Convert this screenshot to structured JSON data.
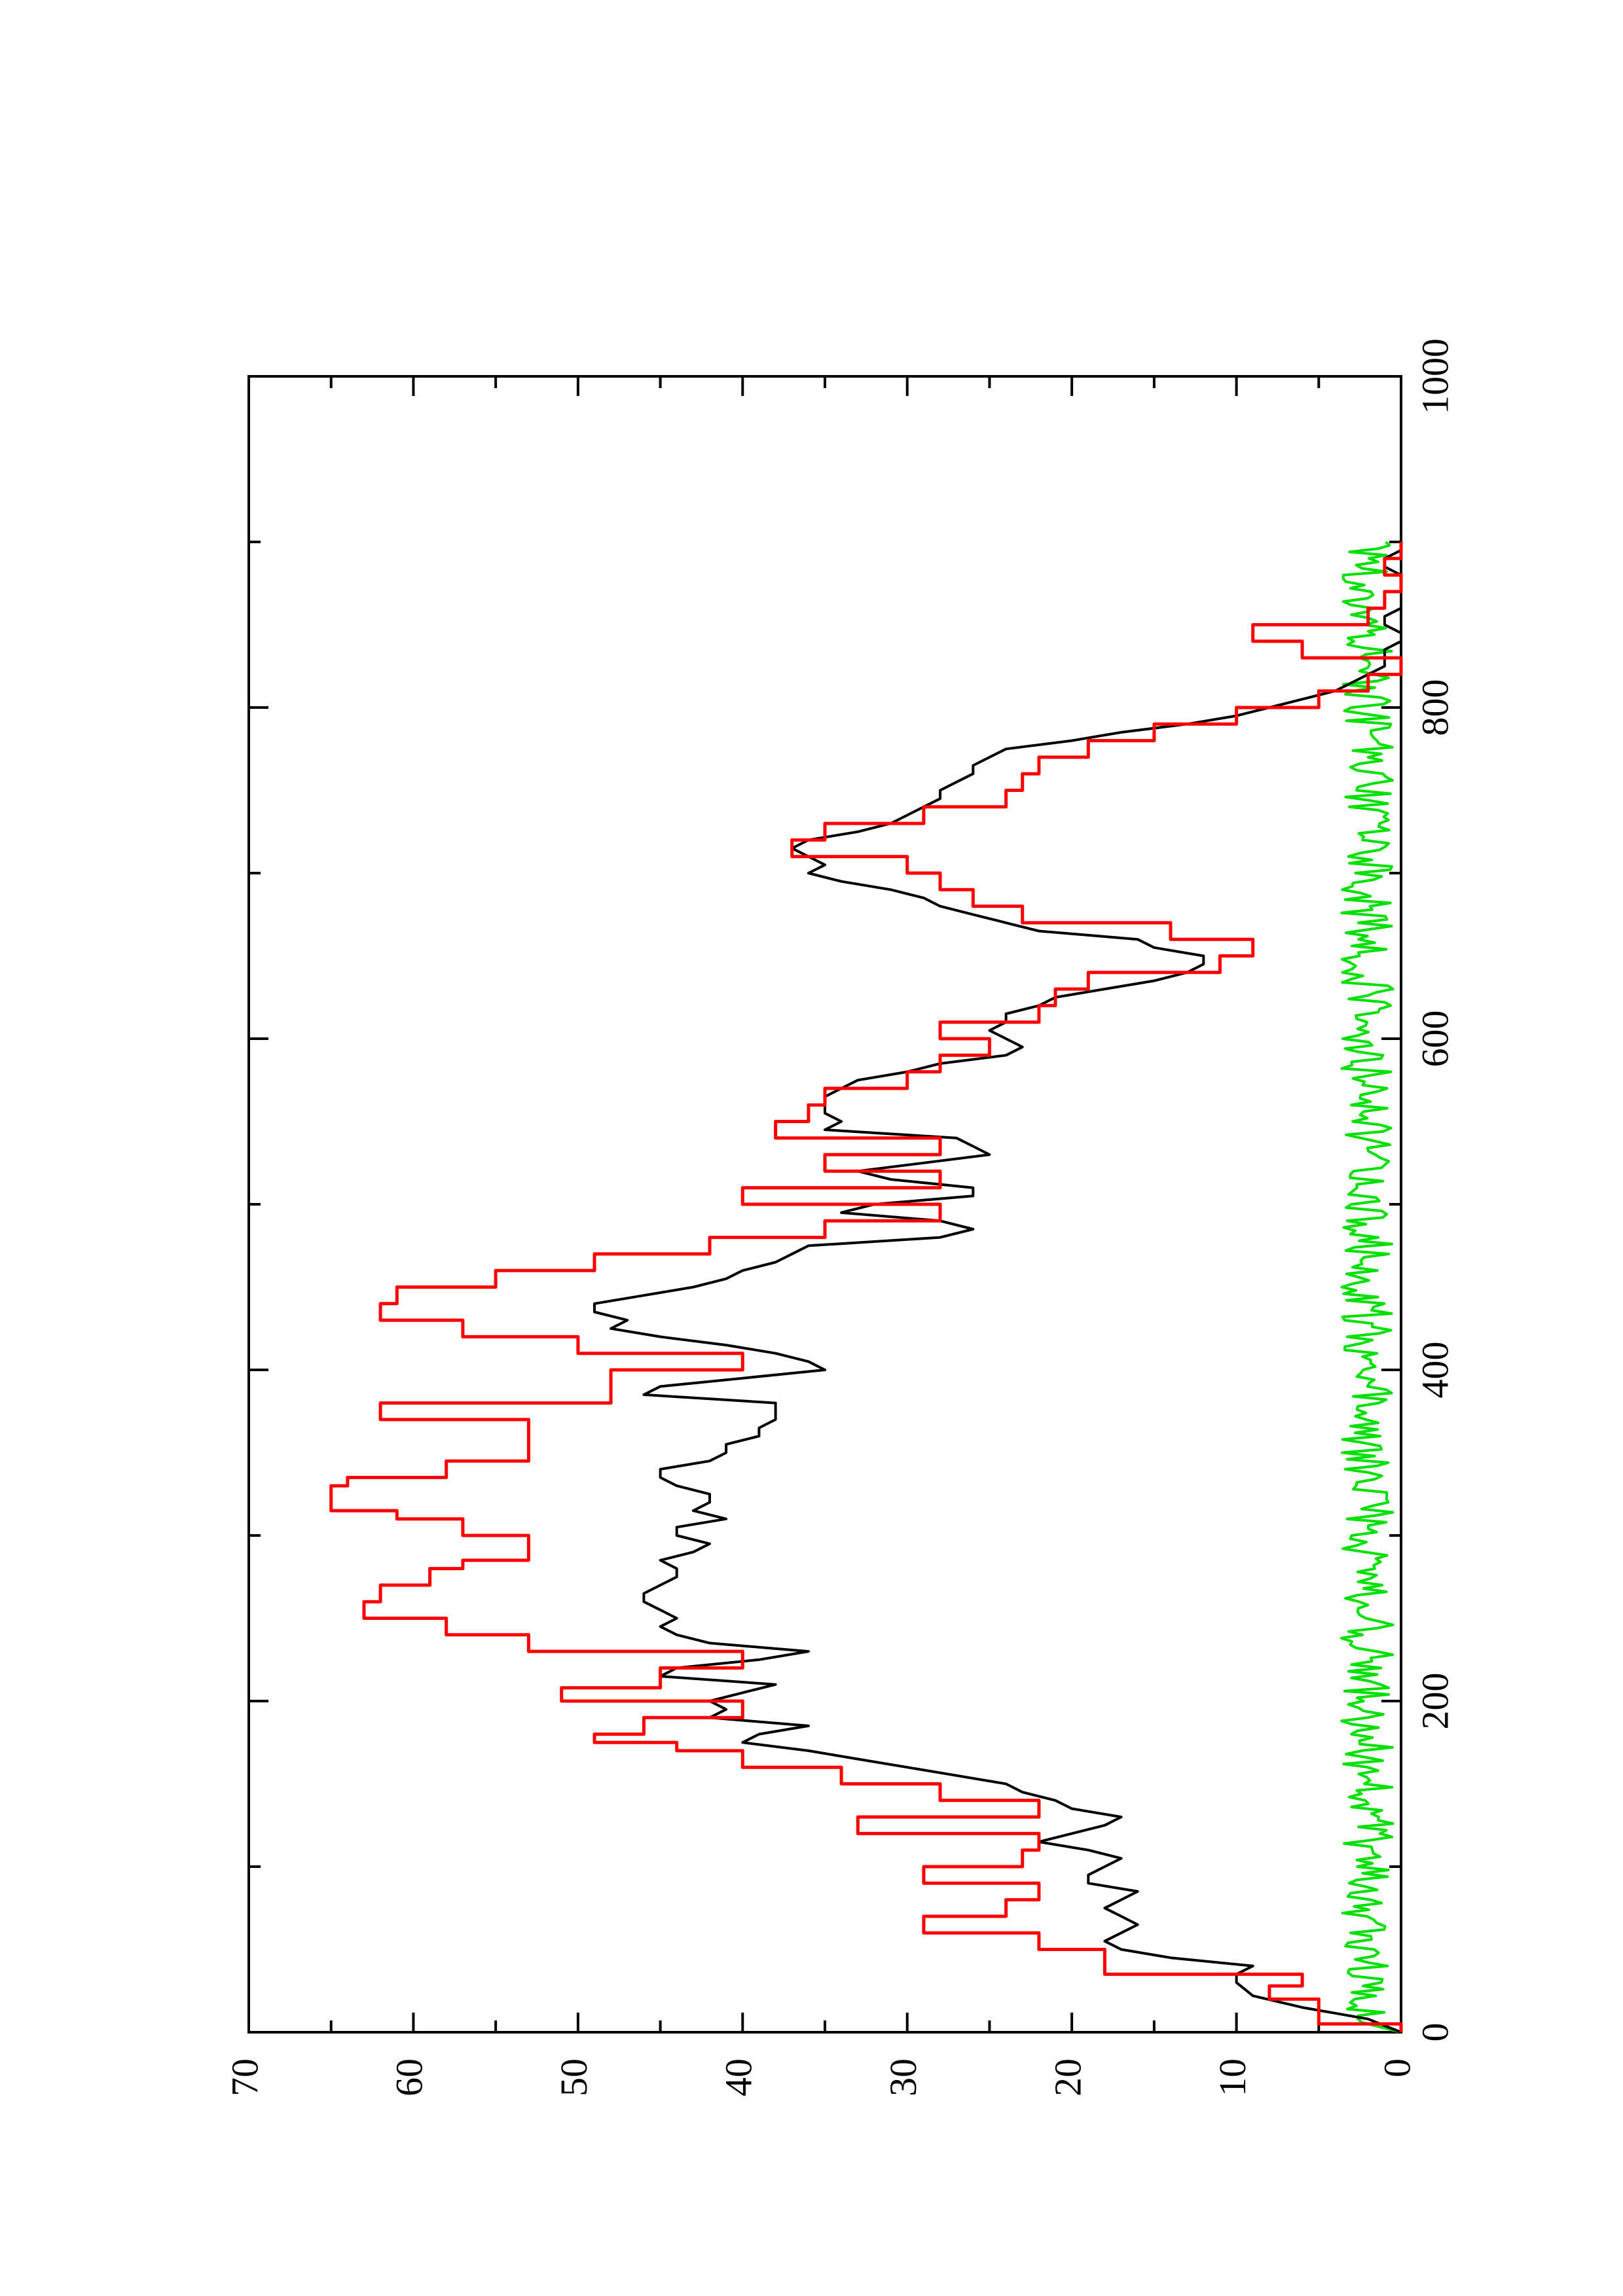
{
  "chart_data": {
    "type": "line",
    "orientation": "rotated-90-ccw",
    "title": "",
    "xlabel": "",
    "ylabel": "",
    "xlim": [
      0,
      1000
    ],
    "ylim": [
      0,
      70
    ],
    "x_major_ticks": [
      0,
      200,
      400,
      600,
      800,
      1000
    ],
    "x_tick_labels": [
      "0",
      "200",
      "400",
      "600",
      "800",
      "1000"
    ],
    "x_minor_ticks": [
      100,
      300,
      500,
      700,
      900
    ],
    "y_major_ticks": [
      0,
      10,
      20,
      30,
      40,
      50,
      60,
      70
    ],
    "y_tick_labels": [
      "0",
      "10",
      "20",
      "30",
      "40",
      "50",
      "60",
      "70"
    ],
    "y_minor_ticks": [
      5,
      15,
      25,
      35,
      45,
      55,
      65
    ],
    "grid": false,
    "legend": "none",
    "series": [
      {
        "color": "#ff0000",
        "x": [
          0,
          5,
          5,
          20,
          20,
          28,
          28,
          35,
          35,
          50,
          50,
          60,
          60,
          70,
          70,
          80,
          80,
          90,
          90,
          100,
          100,
          110,
          110,
          120,
          120,
          130,
          130,
          140,
          140,
          150,
          150,
          160,
          160,
          170,
          170,
          175,
          175,
          180,
          180,
          190,
          190,
          200,
          200,
          208,
          208,
          220,
          220,
          230,
          230,
          240,
          240,
          250,
          250,
          260,
          260,
          270,
          270,
          280,
          280,
          285,
          285,
          300,
          300,
          310,
          310,
          315,
          315,
          330,
          330,
          335,
          335,
          345,
          345,
          370,
          370,
          380,
          380,
          400,
          400,
          410,
          410,
          420,
          420,
          430,
          430,
          440,
          440,
          450,
          450,
          460,
          460,
          470,
          470,
          480,
          480,
          490,
          490,
          500,
          500,
          510,
          510,
          520,
          520,
          530,
          530,
          540,
          540,
          550,
          550,
          560,
          560,
          570,
          570,
          580,
          580,
          590,
          590,
          600,
          600,
          610,
          610,
          620,
          620,
          630,
          630,
          640,
          640,
          650,
          650,
          660,
          660,
          670,
          670,
          680,
          680,
          690,
          690,
          700,
          700,
          710,
          710,
          720,
          720,
          730,
          730,
          740,
          740,
          750,
          750,
          760,
          760,
          770,
          770,
          780,
          780,
          790,
          790,
          800,
          800,
          810,
          810,
          820,
          820,
          830,
          830,
          840,
          840,
          850,
          850,
          860,
          860,
          870,
          870,
          880,
          880,
          890,
          890,
          900
        ],
        "y": [
          0,
          0,
          5,
          5,
          8,
          8,
          6,
          6,
          18,
          18,
          22,
          22,
          29,
          29,
          24,
          24,
          22,
          22,
          29,
          29,
          23,
          23,
          22,
          22,
          33,
          33,
          22,
          22,
          28,
          28,
          34,
          34,
          40,
          40,
          44,
          44,
          49,
          49,
          46,
          46,
          40,
          40,
          51,
          51,
          45,
          45,
          40,
          40,
          53,
          53,
          58,
          58,
          63,
          63,
          62,
          62,
          59,
          59,
          57,
          57,
          53,
          53,
          57,
          57,
          61,
          61,
          65,
          65,
          64,
          64,
          58,
          58,
          53,
          53,
          62,
          62,
          48,
          48,
          40,
          40,
          50,
          50,
          57,
          57,
          62,
          62,
          61,
          61,
          55,
          55,
          49,
          49,
          42,
          42,
          35,
          35,
          28,
          28,
          40,
          40,
          28,
          28,
          35,
          35,
          28,
          28,
          38,
          38,
          36,
          36,
          35,
          35,
          30,
          30,
          28,
          28,
          25,
          25,
          28,
          28,
          22,
          22,
          21,
          21,
          19,
          19,
          11,
          11,
          9,
          9,
          14,
          14,
          23,
          23,
          26,
          26,
          28,
          28,
          30,
          30,
          37,
          37,
          35,
          35,
          29,
          29,
          24,
          24,
          23,
          23,
          22,
          22,
          19,
          19,
          15,
          15,
          10,
          10,
          5,
          5,
          2,
          2,
          0,
          0,
          6,
          6,
          9,
          9,
          2,
          2,
          1,
          1,
          0,
          0,
          1,
          1,
          0,
          0
        ],
        "note_values": "approximate stepped path"
      },
      {
        "color": "#000000",
        "x": [
          0,
          8,
          15,
          22,
          30,
          35,
          40,
          45,
          50,
          55,
          60,
          65,
          70,
          75,
          80,
          85,
          90,
          95,
          100,
          105,
          110,
          115,
          120,
          125,
          130,
          135,
          140,
          145,
          150,
          155,
          160,
          165,
          170,
          175,
          180,
          185,
          190,
          195,
          200,
          205,
          210,
          215,
          220,
          225,
          230,
          235,
          240,
          245,
          250,
          255,
          260,
          265,
          270,
          275,
          280,
          285,
          290,
          295,
          300,
          305,
          310,
          315,
          320,
          325,
          330,
          335,
          340,
          345,
          350,
          355,
          360,
          365,
          370,
          375,
          380,
          385,
          390,
          395,
          400,
          405,
          410,
          415,
          420,
          425,
          430,
          435,
          440,
          445,
          450,
          455,
          460,
          465,
          470,
          475,
          480,
          485,
          490,
          495,
          500,
          505,
          510,
          515,
          520,
          525,
          530,
          535,
          540,
          545,
          550,
          555,
          560,
          565,
          570,
          575,
          580,
          585,
          590,
          595,
          600,
          605,
          610,
          615,
          620,
          625,
          630,
          635,
          640,
          645,
          650,
          655,
          660,
          665,
          670,
          675,
          680,
          685,
          690,
          695,
          700,
          705,
          710,
          715,
          720,
          725,
          730,
          735,
          740,
          745,
          750,
          755,
          760,
          765,
          770,
          775,
          780,
          785,
          790,
          795,
          800,
          805,
          810,
          815,
          820,
          825,
          830,
          835,
          840,
          845,
          850,
          855,
          860,
          865,
          870,
          875,
          880,
          885,
          890,
          895,
          900
        ],
        "y": [
          0,
          2,
          6,
          9,
          10,
          10,
          9,
          14,
          17,
          18,
          17,
          16,
          17,
          18,
          17,
          16,
          19,
          19,
          18,
          17,
          19,
          22,
          20,
          18,
          17,
          20,
          21,
          23,
          24,
          27,
          30,
          33,
          36,
          40,
          39,
          36,
          42,
          41,
          42,
          40,
          38,
          45,
          44,
          39,
          36,
          42,
          44,
          45,
          44,
          45,
          46,
          46,
          45,
          44,
          44,
          45,
          43,
          42,
          44,
          44,
          41,
          43,
          42,
          42,
          44,
          45,
          45,
          42,
          41,
          41,
          39,
          39,
          38,
          38,
          38,
          46,
          45,
          40,
          35,
          36,
          38,
          41,
          45,
          48,
          47,
          49,
          49,
          46,
          43,
          41,
          40,
          38,
          37,
          36,
          28,
          26,
          28,
          34,
          32,
          26,
          26,
          31,
          33,
          29,
          25,
          26,
          27,
          35,
          34,
          35,
          35,
          35,
          34,
          33,
          30,
          28,
          24,
          23,
          24,
          25,
          24,
          24,
          22,
          21,
          18,
          15,
          13,
          12,
          12,
          15,
          16,
          22,
          24,
          26,
          28,
          29,
          31,
          34,
          36,
          35,
          36,
          37,
          36,
          33,
          31,
          30,
          29,
          28,
          28,
          27,
          26,
          26,
          25,
          24,
          20,
          17,
          13,
          10,
          8,
          6,
          4,
          3,
          2,
          1,
          1,
          1,
          0,
          0,
          1,
          1,
          0,
          0,
          0,
          0,
          0,
          1,
          1,
          0,
          0
        ],
        "note_values": "approximate"
      },
      {
        "color": "#00e000",
        "noise": true,
        "x_range": [
          0,
          900
        ],
        "y_mean": 1.2,
        "y_max": 3.5,
        "note_values": "low-amplitude noise near zero"
      }
    ]
  }
}
